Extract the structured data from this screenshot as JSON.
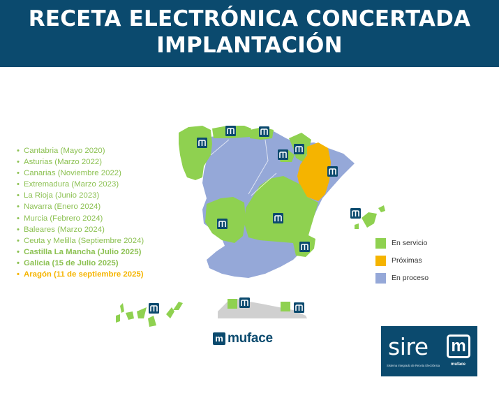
{
  "header": {
    "title_line1": "RECETA ELECTRÓNICA CONCERTADA",
    "title_line2": "IMPLANTACIÓN"
  },
  "regions_list": [
    {
      "text": "Cantabria (Mayo 2020)",
      "status": "en_servicio"
    },
    {
      "text": "Asturias (Marzo 2022)",
      "status": "en_servicio"
    },
    {
      "text": "Canarias (Noviembre 2022)",
      "status": "en_servicio"
    },
    {
      "text": "Extremadura (Marzo 2023)",
      "status": "en_servicio"
    },
    {
      "text": "La Rioja (Junio 2023)",
      "status": "en_servicio"
    },
    {
      "text": "Navarra (Enero 2024)",
      "status": "en_servicio"
    },
    {
      "text": "Murcia (Febrero 2024)",
      "status": "en_servicio"
    },
    {
      "text": "Baleares (Marzo 2024)",
      "status": "en_servicio"
    },
    {
      "text": "Ceuta y Melilla (Septiembre 2024)",
      "status": "en_servicio"
    },
    {
      "text": "Castilla La Mancha (Julio 2025)",
      "status": "en_servicio",
      "bold": true
    },
    {
      "text": "Galicia (15 de Julio 2025)",
      "status": "en_servicio",
      "bold": true
    },
    {
      "text": "Aragón (11 de septiembre 2025)",
      "status": "proximas",
      "bold": true
    }
  ],
  "legend": [
    {
      "label": "En servicio",
      "color": "#8fd150"
    },
    {
      "label": "Próximas",
      "color": "#f5b400"
    },
    {
      "label": "En proceso",
      "color": "#95a8d8"
    }
  ],
  "colors": {
    "header_bg": "#0b4a6e",
    "en_servicio": "#8fd150",
    "proximas": "#f5b400",
    "en_proceso": "#95a8d8",
    "list_green": "#8cc152"
  },
  "logos": {
    "muface": "muface",
    "sirem_word": "sire",
    "sirem_mark": "m",
    "sirem_tagline": "Sistema Integrado de Receta Electrónica",
    "sirem_mini": "muface"
  },
  "map_marker_icon": "muface-m-icon"
}
